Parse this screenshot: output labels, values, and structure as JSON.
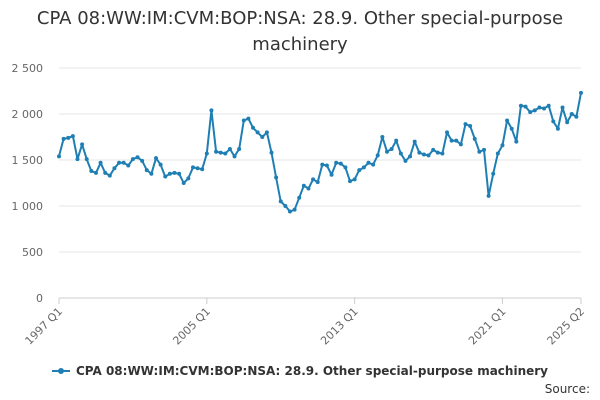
{
  "chart_data": {
    "type": "line",
    "title": "CPA 08:WW:IM:CVM:BOP:NSA: 28.9. Other special-purpose machinery",
    "xlabel": "",
    "ylabel": "",
    "ylim": [
      0,
      2500
    ],
    "yticks": [
      0,
      500,
      1000,
      1500,
      2000,
      2500
    ],
    "ytick_labels": [
      "0",
      "500",
      "1 000",
      "1 500",
      "2 000",
      "2 500"
    ],
    "xtick_labels": [
      "1997 Q1",
      "2005 Q1",
      "2013 Q1",
      "2021 Q1",
      "2025 Q2"
    ],
    "x_count": 114,
    "grid": true,
    "legend_position": "bottom",
    "colors": {
      "series": "#1f7fb4",
      "grid": "#e6e6e6",
      "axis": "#cccccc"
    },
    "series": [
      {
        "name": "CPA 08:WW:IM:CVM:BOP:NSA: 28.9. Other special-purpose machinery",
        "values": [
          1540,
          1730,
          1740,
          1760,
          1510,
          1670,
          1510,
          1380,
          1360,
          1470,
          1360,
          1330,
          1410,
          1470,
          1470,
          1440,
          1510,
          1530,
          1490,
          1390,
          1350,
          1520,
          1450,
          1320,
          1350,
          1360,
          1350,
          1250,
          1300,
          1420,
          1410,
          1400,
          1570,
          2040,
          1590,
          1580,
          1570,
          1620,
          1540,
          1620,
          1930,
          1950,
          1850,
          1800,
          1750,
          1800,
          1580,
          1310,
          1050,
          1000,
          940,
          960,
          1090,
          1220,
          1190,
          1290,
          1260,
          1450,
          1440,
          1340,
          1470,
          1460,
          1420,
          1270,
          1290,
          1390,
          1420,
          1470,
          1450,
          1550,
          1750,
          1590,
          1620,
          1710,
          1570,
          1490,
          1540,
          1700,
          1580,
          1560,
          1550,
          1610,
          1580,
          1570,
          1800,
          1710,
          1710,
          1670,
          1890,
          1870,
          1730,
          1590,
          1610,
          1110,
          1350,
          1570,
          1660,
          1930,
          1840,
          1700,
          2090,
          2080,
          2020,
          2040,
          2070,
          2060,
          2090,
          1920,
          1840,
          2070,
          1910,
          2000,
          1970,
          2230
        ]
      }
    ]
  },
  "source_label": "Source:"
}
